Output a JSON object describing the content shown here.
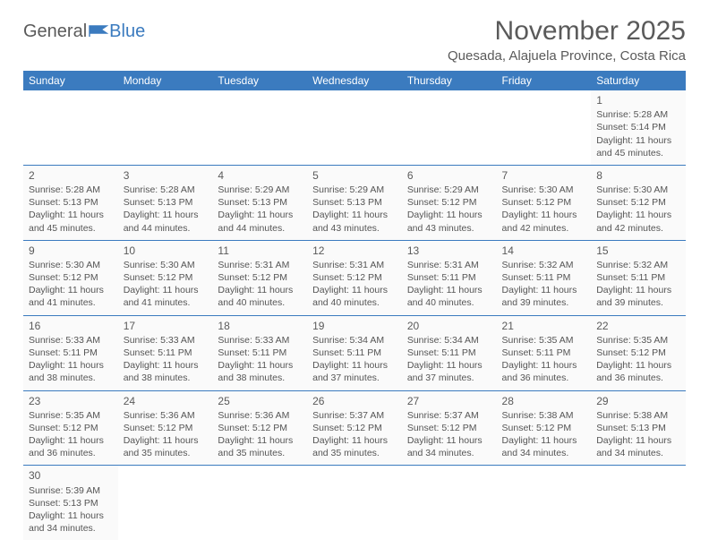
{
  "logo": {
    "text_general": "General",
    "text_blue": "Blue",
    "flag_color": "#3b7bbf"
  },
  "title": {
    "month": "November 2025",
    "location": "Quesada, Alajuela Province, Costa Rica"
  },
  "header_bg": "#3b7bbf",
  "header_fg": "#ffffff",
  "cell_bg": "#fafafa",
  "border_color": "#3b7bbf",
  "text_color": "#555555",
  "daynames": [
    "Sunday",
    "Monday",
    "Tuesday",
    "Wednesday",
    "Thursday",
    "Friday",
    "Saturday"
  ],
  "weeks": [
    [
      null,
      null,
      null,
      null,
      null,
      null,
      {
        "n": "1",
        "sr": "Sunrise: 5:28 AM",
        "ss": "Sunset: 5:14 PM",
        "dl1": "Daylight: 11 hours",
        "dl2": "and 45 minutes."
      }
    ],
    [
      {
        "n": "2",
        "sr": "Sunrise: 5:28 AM",
        "ss": "Sunset: 5:13 PM",
        "dl1": "Daylight: 11 hours",
        "dl2": "and 45 minutes."
      },
      {
        "n": "3",
        "sr": "Sunrise: 5:28 AM",
        "ss": "Sunset: 5:13 PM",
        "dl1": "Daylight: 11 hours",
        "dl2": "and 44 minutes."
      },
      {
        "n": "4",
        "sr": "Sunrise: 5:29 AM",
        "ss": "Sunset: 5:13 PM",
        "dl1": "Daylight: 11 hours",
        "dl2": "and 44 minutes."
      },
      {
        "n": "5",
        "sr": "Sunrise: 5:29 AM",
        "ss": "Sunset: 5:13 PM",
        "dl1": "Daylight: 11 hours",
        "dl2": "and 43 minutes."
      },
      {
        "n": "6",
        "sr": "Sunrise: 5:29 AM",
        "ss": "Sunset: 5:12 PM",
        "dl1": "Daylight: 11 hours",
        "dl2": "and 43 minutes."
      },
      {
        "n": "7",
        "sr": "Sunrise: 5:30 AM",
        "ss": "Sunset: 5:12 PM",
        "dl1": "Daylight: 11 hours",
        "dl2": "and 42 minutes."
      },
      {
        "n": "8",
        "sr": "Sunrise: 5:30 AM",
        "ss": "Sunset: 5:12 PM",
        "dl1": "Daylight: 11 hours",
        "dl2": "and 42 minutes."
      }
    ],
    [
      {
        "n": "9",
        "sr": "Sunrise: 5:30 AM",
        "ss": "Sunset: 5:12 PM",
        "dl1": "Daylight: 11 hours",
        "dl2": "and 41 minutes."
      },
      {
        "n": "10",
        "sr": "Sunrise: 5:30 AM",
        "ss": "Sunset: 5:12 PM",
        "dl1": "Daylight: 11 hours",
        "dl2": "and 41 minutes."
      },
      {
        "n": "11",
        "sr": "Sunrise: 5:31 AM",
        "ss": "Sunset: 5:12 PM",
        "dl1": "Daylight: 11 hours",
        "dl2": "and 40 minutes."
      },
      {
        "n": "12",
        "sr": "Sunrise: 5:31 AM",
        "ss": "Sunset: 5:12 PM",
        "dl1": "Daylight: 11 hours",
        "dl2": "and 40 minutes."
      },
      {
        "n": "13",
        "sr": "Sunrise: 5:31 AM",
        "ss": "Sunset: 5:11 PM",
        "dl1": "Daylight: 11 hours",
        "dl2": "and 40 minutes."
      },
      {
        "n": "14",
        "sr": "Sunrise: 5:32 AM",
        "ss": "Sunset: 5:11 PM",
        "dl1": "Daylight: 11 hours",
        "dl2": "and 39 minutes."
      },
      {
        "n": "15",
        "sr": "Sunrise: 5:32 AM",
        "ss": "Sunset: 5:11 PM",
        "dl1": "Daylight: 11 hours",
        "dl2": "and 39 minutes."
      }
    ],
    [
      {
        "n": "16",
        "sr": "Sunrise: 5:33 AM",
        "ss": "Sunset: 5:11 PM",
        "dl1": "Daylight: 11 hours",
        "dl2": "and 38 minutes."
      },
      {
        "n": "17",
        "sr": "Sunrise: 5:33 AM",
        "ss": "Sunset: 5:11 PM",
        "dl1": "Daylight: 11 hours",
        "dl2": "and 38 minutes."
      },
      {
        "n": "18",
        "sr": "Sunrise: 5:33 AM",
        "ss": "Sunset: 5:11 PM",
        "dl1": "Daylight: 11 hours",
        "dl2": "and 38 minutes."
      },
      {
        "n": "19",
        "sr": "Sunrise: 5:34 AM",
        "ss": "Sunset: 5:11 PM",
        "dl1": "Daylight: 11 hours",
        "dl2": "and 37 minutes."
      },
      {
        "n": "20",
        "sr": "Sunrise: 5:34 AM",
        "ss": "Sunset: 5:11 PM",
        "dl1": "Daylight: 11 hours",
        "dl2": "and 37 minutes."
      },
      {
        "n": "21",
        "sr": "Sunrise: 5:35 AM",
        "ss": "Sunset: 5:11 PM",
        "dl1": "Daylight: 11 hours",
        "dl2": "and 36 minutes."
      },
      {
        "n": "22",
        "sr": "Sunrise: 5:35 AM",
        "ss": "Sunset: 5:12 PM",
        "dl1": "Daylight: 11 hours",
        "dl2": "and 36 minutes."
      }
    ],
    [
      {
        "n": "23",
        "sr": "Sunrise: 5:35 AM",
        "ss": "Sunset: 5:12 PM",
        "dl1": "Daylight: 11 hours",
        "dl2": "and 36 minutes."
      },
      {
        "n": "24",
        "sr": "Sunrise: 5:36 AM",
        "ss": "Sunset: 5:12 PM",
        "dl1": "Daylight: 11 hours",
        "dl2": "and 35 minutes."
      },
      {
        "n": "25",
        "sr": "Sunrise: 5:36 AM",
        "ss": "Sunset: 5:12 PM",
        "dl1": "Daylight: 11 hours",
        "dl2": "and 35 minutes."
      },
      {
        "n": "26",
        "sr": "Sunrise: 5:37 AM",
        "ss": "Sunset: 5:12 PM",
        "dl1": "Daylight: 11 hours",
        "dl2": "and 35 minutes."
      },
      {
        "n": "27",
        "sr": "Sunrise: 5:37 AM",
        "ss": "Sunset: 5:12 PM",
        "dl1": "Daylight: 11 hours",
        "dl2": "and 34 minutes."
      },
      {
        "n": "28",
        "sr": "Sunrise: 5:38 AM",
        "ss": "Sunset: 5:12 PM",
        "dl1": "Daylight: 11 hours",
        "dl2": "and 34 minutes."
      },
      {
        "n": "29",
        "sr": "Sunrise: 5:38 AM",
        "ss": "Sunset: 5:13 PM",
        "dl1": "Daylight: 11 hours",
        "dl2": "and 34 minutes."
      }
    ],
    [
      {
        "n": "30",
        "sr": "Sunrise: 5:39 AM",
        "ss": "Sunset: 5:13 PM",
        "dl1": "Daylight: 11 hours",
        "dl2": "and 34 minutes."
      },
      null,
      null,
      null,
      null,
      null,
      null
    ]
  ]
}
